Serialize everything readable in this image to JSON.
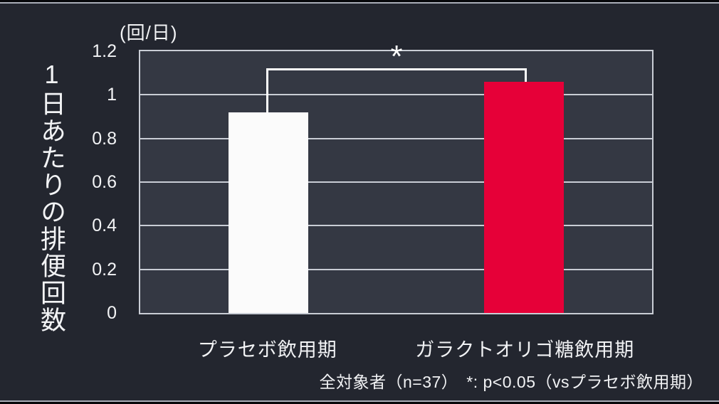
{
  "chart": {
    "unit_label": "(回/日)",
    "y_axis_title": "1日あたりの排便回数",
    "significance_marker": "*",
    "footnote": "全対象者（n=37）　*: p<0.05（vsプラセボ飲用期）"
  },
  "chart_data": {
    "type": "bar",
    "title": "",
    "ylabel": "1日あたりの排便回数",
    "unit_label": "(回/日)",
    "categories": [
      "プラセボ飲用期",
      "ガラクトオリゴ糖飲用期"
    ],
    "values": [
      0.92,
      1.06
    ],
    "bar_colors": [
      "#fbfbfb",
      "#e60038"
    ],
    "bar_names": [
      "bar-placebo",
      "bar-galacto-oligosaccharide"
    ],
    "ylim": [
      0,
      1.2
    ],
    "yticks": [
      0,
      0.2,
      0.4,
      0.6,
      0.8,
      1,
      1.2
    ],
    "ytick_labels": [
      "0",
      "0.2",
      "0.4",
      "0.6",
      "0.8",
      "1",
      "1.2"
    ],
    "grid": true,
    "legend": "none",
    "significance": {
      "marker": "*",
      "between": [
        "プラセボ飲用期",
        "ガラクトオリゴ糖飲用期"
      ],
      "note": "p<0.05"
    },
    "footnote": "全対象者（n=37）　*: p<0.05（vsプラセボ飲用期）"
  },
  "colors": {
    "background": "#23262f",
    "plot_background": "#343843",
    "gridline": "#c9cdd5",
    "bracket": "#ffffff",
    "bar_placebo": "#fbfbfb",
    "bar_gos": "#e60038",
    "text": "#f2f3f5"
  }
}
